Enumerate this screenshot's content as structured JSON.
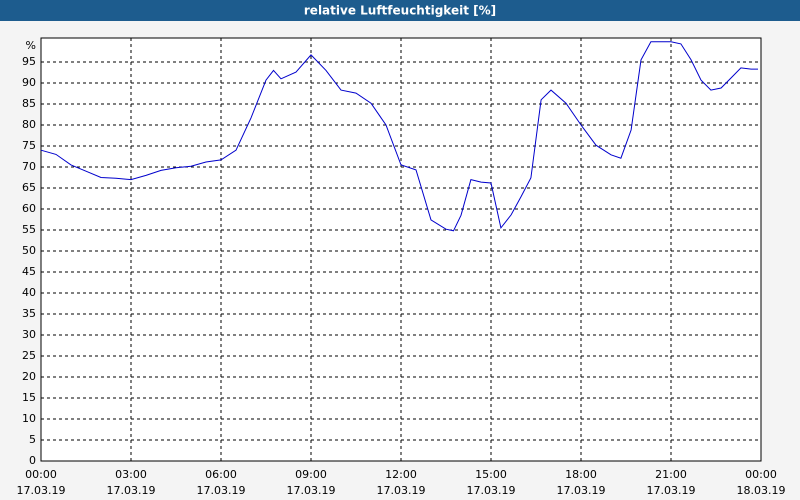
{
  "chart_data": {
    "type": "line",
    "title": "relative Luftfeuchtigkeit [%]",
    "y_label": "%",
    "color": "#0000cc",
    "x": [
      0,
      0.5,
      1,
      1.5,
      2,
      2.5,
      3,
      3.5,
      4,
      4.5,
      5,
      5.5,
      6,
      6.5,
      7,
      7.5,
      7.75,
      8,
      8.5,
      9,
      9.5,
      10,
      10.5,
      11,
      11.5,
      12,
      12.5,
      13,
      13.5,
      13.75,
      14,
      14.33,
      14.67,
      15,
      15.33,
      15.67,
      16,
      16.33,
      16.67,
      17,
      17.5,
      18,
      18.5,
      19,
      19.33,
      19.67,
      20,
      20.33,
      21,
      21.33,
      21.67,
      22,
      22.33,
      22.67,
      23,
      23.33,
      23.67,
      23.9
    ],
    "values": [
      74,
      73,
      70.5,
      69,
      67.5,
      67.3,
      67,
      68,
      69.2,
      69.8,
      70.2,
      71.2,
      71.7,
      74,
      81.7,
      90.7,
      93,
      91,
      92.6,
      96.7,
      93,
      88.3,
      87.6,
      85.2,
      80,
      70.5,
      69.3,
      57.4,
      55.2,
      54.8,
      58.5,
      67,
      66.4,
      66.2,
      55.5,
      58.6,
      62.9,
      67.4,
      86,
      88.3,
      85.2,
      80,
      75.2,
      72.9,
      72.1,
      78.8,
      95.5,
      99.8,
      99.8,
      99.3,
      95.5,
      90.7,
      88.3,
      88.8,
      91.2,
      93.6,
      93.3,
      93.3
    ],
    "xlim": [
      0,
      24
    ],
    "xticks": [
      {
        "value": 0,
        "label": "00:00"
      },
      {
        "value": 3,
        "label": "03:00"
      },
      {
        "value": 6,
        "label": "06:00"
      },
      {
        "value": 9,
        "label": "09:00"
      },
      {
        "value": 12,
        "label": "12:00"
      },
      {
        "value": 15,
        "label": "15:00"
      },
      {
        "value": 18,
        "label": "18:00"
      },
      {
        "value": 21,
        "label": "21:00"
      },
      {
        "value": 24,
        "label": "00:00"
      }
    ],
    "x_dates": [
      "17.03.19",
      "17.03.19",
      "17.03.19",
      "17.03.19",
      "17.03.19",
      "17.03.19",
      "17.03.19",
      "17.03.19",
      "18.03.19"
    ],
    "ylim": [
      0,
      100
    ],
    "yticks": [
      0,
      5,
      10,
      15,
      20,
      25,
      30,
      35,
      40,
      45,
      50,
      55,
      60,
      65,
      70,
      75,
      80,
      85,
      90,
      95
    ],
    "grid": true
  }
}
